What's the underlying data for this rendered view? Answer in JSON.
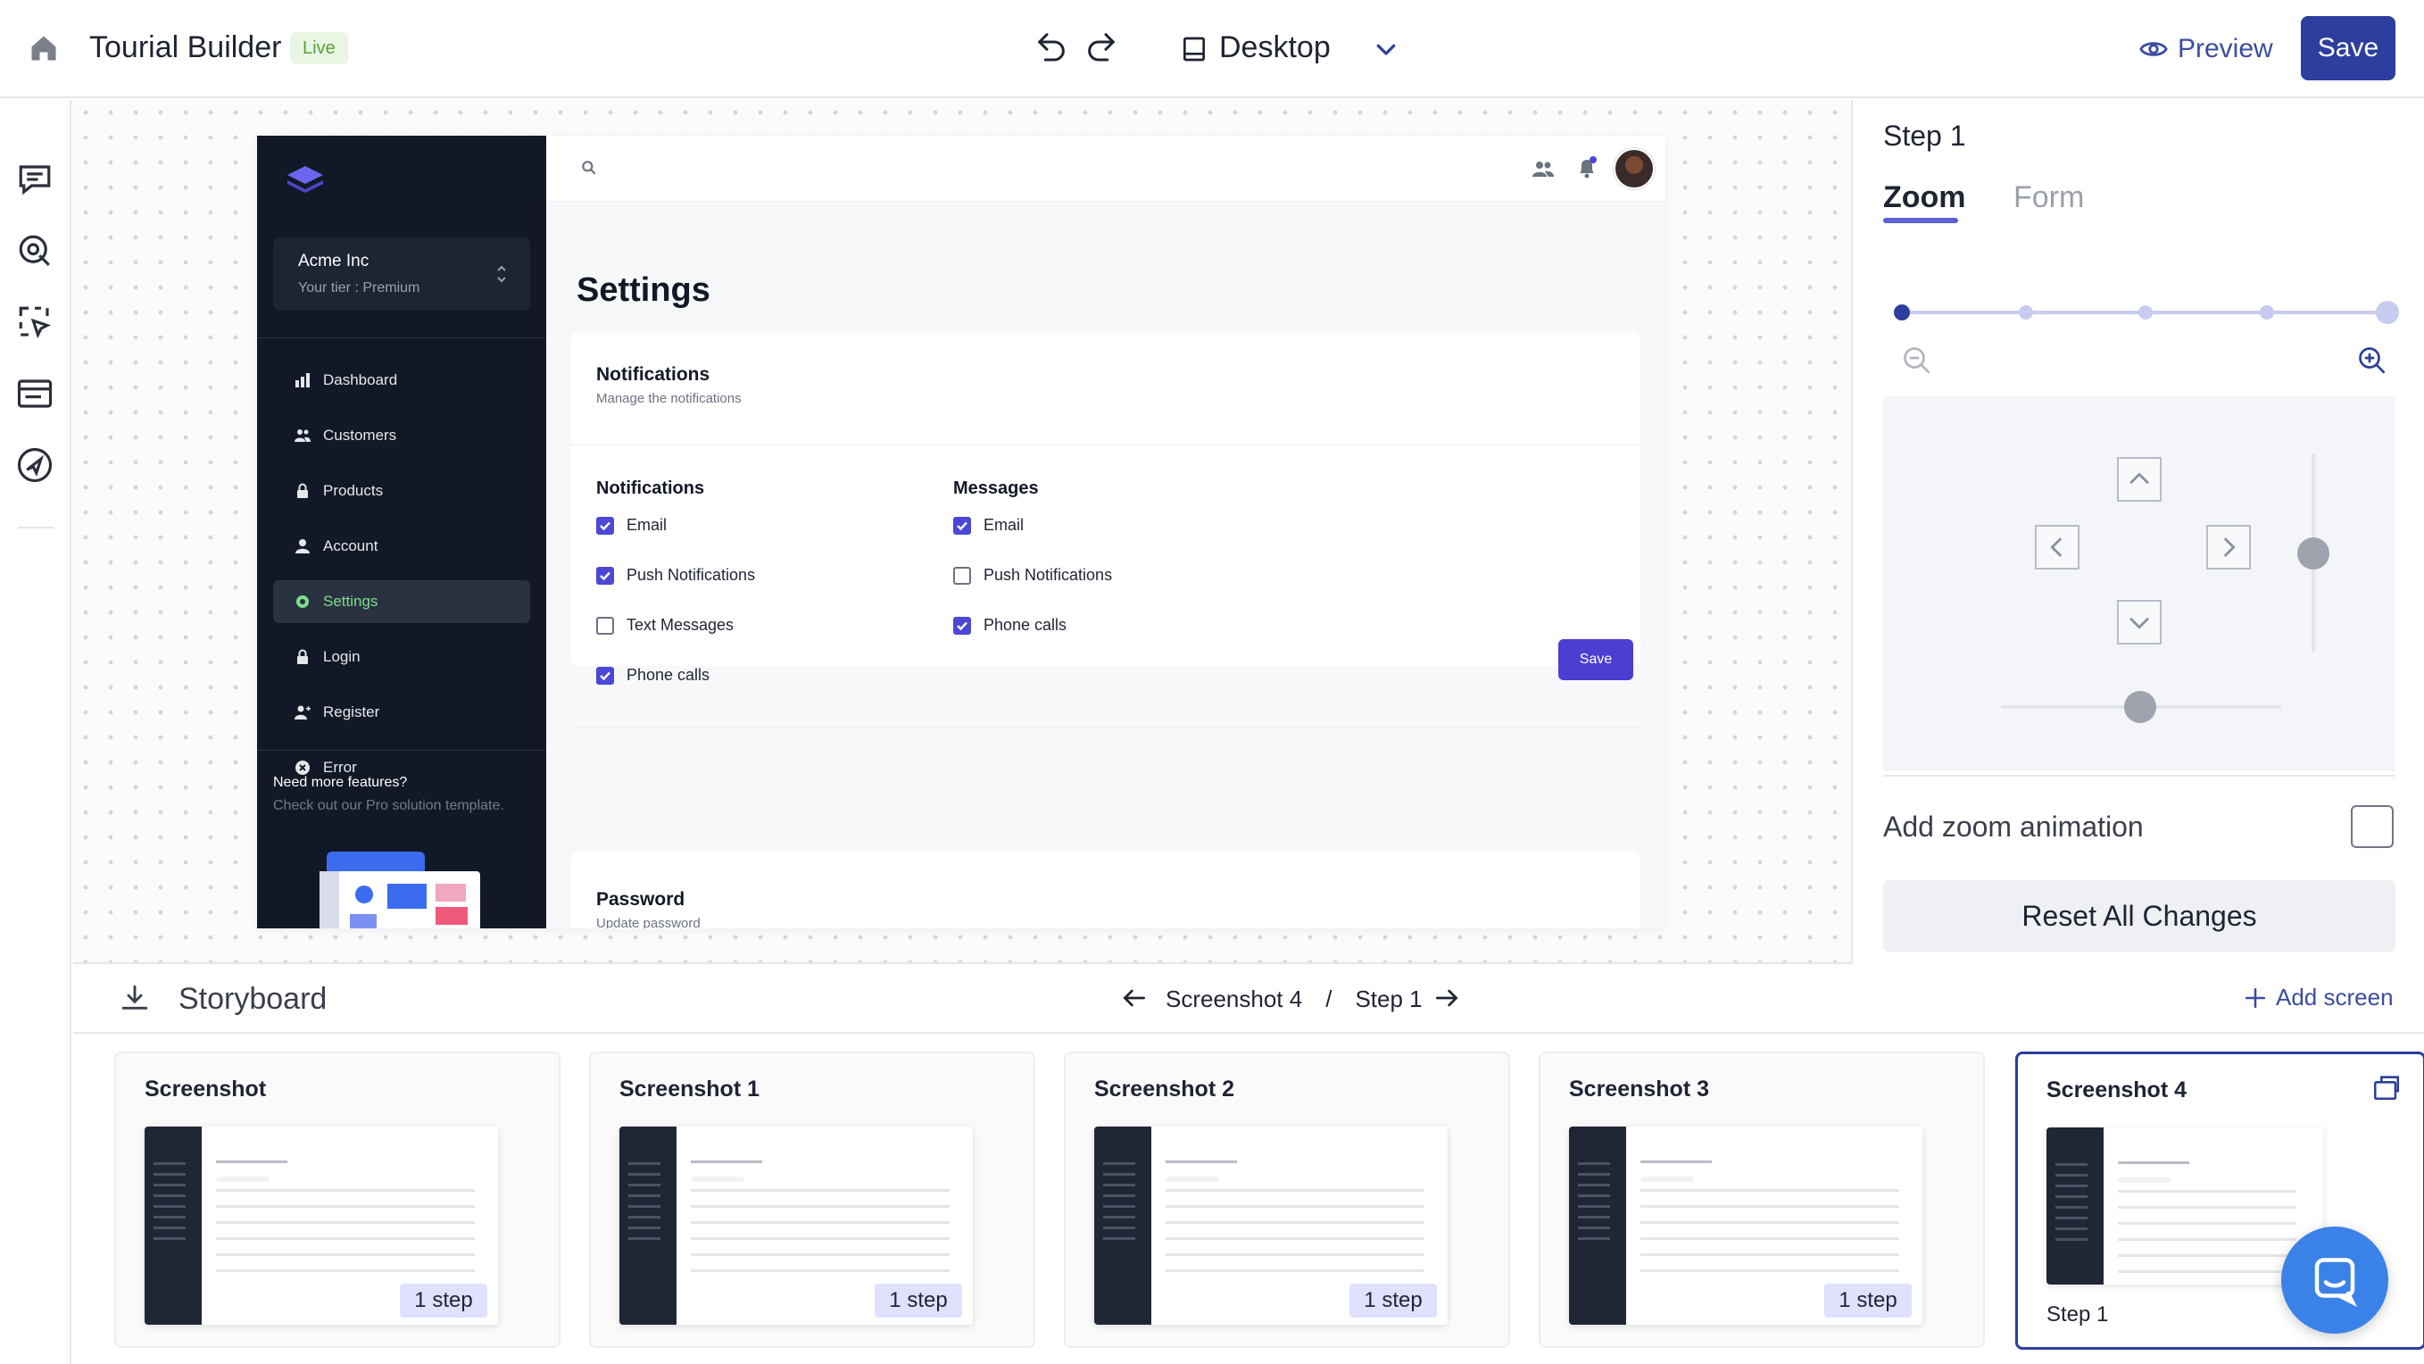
{
  "topbar": {
    "title": "Tourial Builder",
    "live_badge": "Live",
    "device": "Desktop",
    "preview_label": "Preview",
    "save_label": "Save"
  },
  "leftrail": {
    "icons": [
      "comment-icon",
      "hotspot-icon",
      "select-region-icon",
      "card-icon",
      "navigation-icon"
    ]
  },
  "mock": {
    "org_name": "Acme Inc",
    "org_tier": "Your tier : Premium",
    "nav": [
      "Dashboard",
      "Customers",
      "Products",
      "Account",
      "Settings",
      "Login",
      "Register",
      "Error"
    ],
    "active_nav": "Settings",
    "promo_title": "Need more features?",
    "promo_sub": "Check out our Pro solution template.",
    "page_title": "Settings",
    "notif_card_title": "Notifications",
    "notif_card_sub": "Manage the notifications",
    "col1_title": "Notifications",
    "col1": [
      {
        "label": "Email",
        "checked": true
      },
      {
        "label": "Push Notifications",
        "checked": true
      },
      {
        "label": "Text Messages",
        "checked": false
      },
      {
        "label": "Phone calls",
        "checked": true
      }
    ],
    "col2_title": "Messages",
    "col2": [
      {
        "label": "Email",
        "checked": true
      },
      {
        "label": "Push Notifications",
        "checked": false
      },
      {
        "label": "Phone calls",
        "checked": true
      }
    ],
    "save_label": "Save",
    "password_title": "Password",
    "password_sub": "Update password"
  },
  "rpanel": {
    "step_title": "Step 1",
    "tab_zoom": "Zoom",
    "tab_form": "Form",
    "zoom_levels": 5,
    "zoom_selected": 1,
    "add_zoom_label": "Add zoom animation",
    "add_zoom_checked": false,
    "reset_label": "Reset All Changes"
  },
  "storyboard": {
    "title": "Storyboard",
    "crumb_screen": "Screenshot 4",
    "crumb_sep": "/",
    "crumb_step": "Step 1",
    "add_screen": "Add screen",
    "cards": [
      {
        "title": "Screenshot",
        "badge": "1 step"
      },
      {
        "title": "Screenshot 1",
        "badge": "1 step"
      },
      {
        "title": "Screenshot 2",
        "badge": "1 step"
      },
      {
        "title": "Screenshot 3",
        "badge": "1 step"
      },
      {
        "title": "Screenshot 4",
        "step": "Step 1",
        "active": true
      }
    ]
  },
  "colors": {
    "brand": "#2c3e9e",
    "accent": "#5b61d6",
    "live_bg": "#e9f6e4",
    "live_fg": "#5aa03d",
    "mock_sidebar": "#121826",
    "checkbox_on": "#4b48d6"
  }
}
